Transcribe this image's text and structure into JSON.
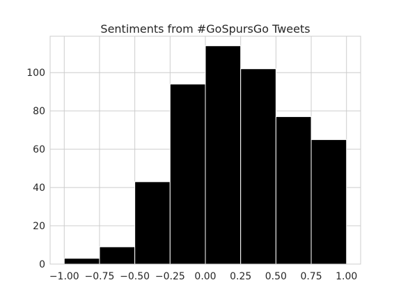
{
  "chart_data": {
    "type": "bar",
    "title": "Sentiments from #GoSpursGo Tweets",
    "xlabel": "",
    "ylabel": "",
    "bin_edges": [
      -1.0,
      -0.75,
      -0.5,
      -0.25,
      0.0,
      0.25,
      0.5,
      0.75,
      1.0
    ],
    "values": [
      3,
      9,
      43,
      94,
      114,
      102,
      77,
      65
    ],
    "xlim": [
      -1.1,
      1.1
    ],
    "ylim": [
      0,
      119
    ],
    "xticks": [
      -1.0,
      -0.75,
      -0.5,
      -0.25,
      0.0,
      0.25,
      0.5,
      0.75,
      1.0
    ],
    "xtick_labels": [
      "−1.00",
      "−0.75",
      "−0.50",
      "−0.25",
      "0.00",
      "0.25",
      "0.50",
      "0.75",
      "1.00"
    ],
    "yticks": [
      0,
      20,
      40,
      60,
      80,
      100
    ],
    "ytick_labels": [
      "0",
      "20",
      "40",
      "60",
      "80",
      "100"
    ],
    "grid": true,
    "bar_color": "#000000",
    "grid_color": "#cccccc"
  }
}
